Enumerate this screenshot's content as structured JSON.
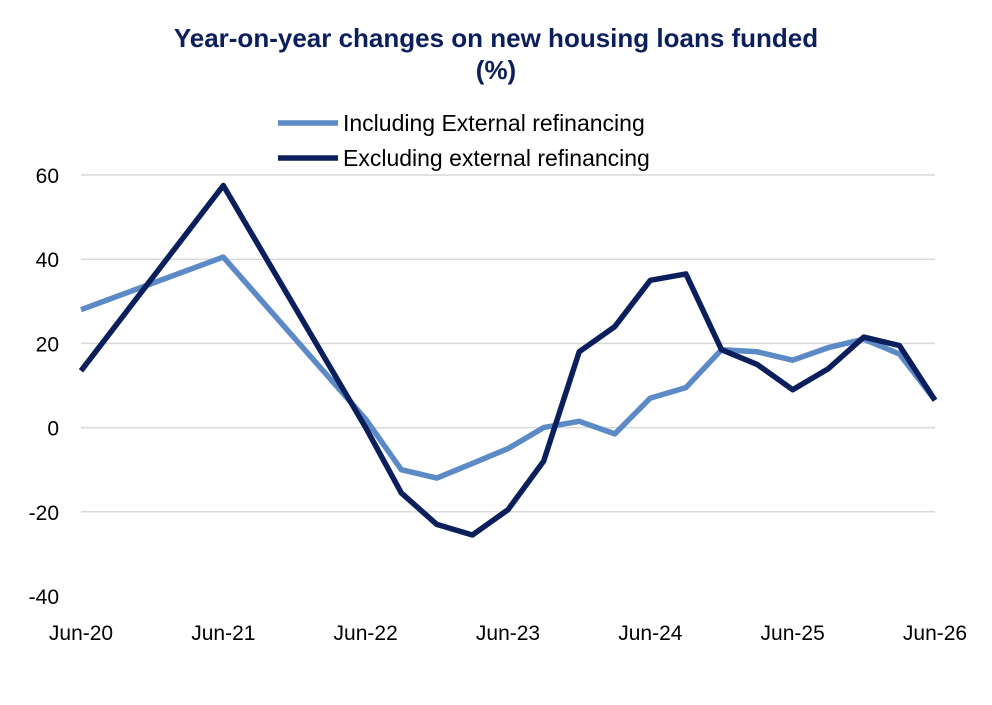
{
  "chart_data": {
    "type": "line",
    "title_line1": "Year-on-year changes on new housing loans funded",
    "title_line2": "(%)",
    "xlabel": "",
    "ylabel": "",
    "ylim": [
      -40,
      60
    ],
    "yticks": [
      "60",
      "40",
      "20",
      "0",
      "-20",
      "-40"
    ],
    "ytick_values": [
      60,
      40,
      20,
      0,
      -20,
      -40
    ],
    "xlim": [
      0,
      24
    ],
    "xticks": [
      "Jun-20",
      "Jun-21",
      "Jun-22",
      "Jun-23",
      "Jun-24",
      "Jun-25",
      "Jun-26"
    ],
    "xtick_positions": [
      0,
      4,
      8,
      12,
      16,
      20,
      24
    ],
    "grid": true,
    "legend_placement": "top-center",
    "series": [
      {
        "name": "Including External refinancing",
        "color": "#5b8ac6",
        "x": [
          0,
          4,
          8,
          9,
          10,
          11,
          12,
          13,
          14,
          15,
          16,
          17,
          18,
          19,
          20,
          21,
          22,
          23,
          24
        ],
        "values": [
          28,
          40.5,
          2,
          -10,
          -12,
          -8.5,
          -5,
          0,
          1.5,
          -1.5,
          7,
          9.5,
          18.5,
          18,
          16,
          19,
          21,
          17.5,
          6.5
        ]
      },
      {
        "name": "Excluding external refinancing",
        "color": "#0b1f5c",
        "x": [
          0,
          4,
          8,
          9,
          10,
          11,
          12,
          13,
          14,
          15,
          16,
          17,
          18,
          19,
          20,
          21,
          22,
          23,
          24
        ],
        "values": [
          13.5,
          57.5,
          0,
          -15.5,
          -23,
          -25.5,
          -19.5,
          -8,
          18,
          24,
          35,
          36.5,
          18.5,
          15,
          9,
          14,
          21.5,
          19.5,
          6.5
        ]
      }
    ]
  }
}
